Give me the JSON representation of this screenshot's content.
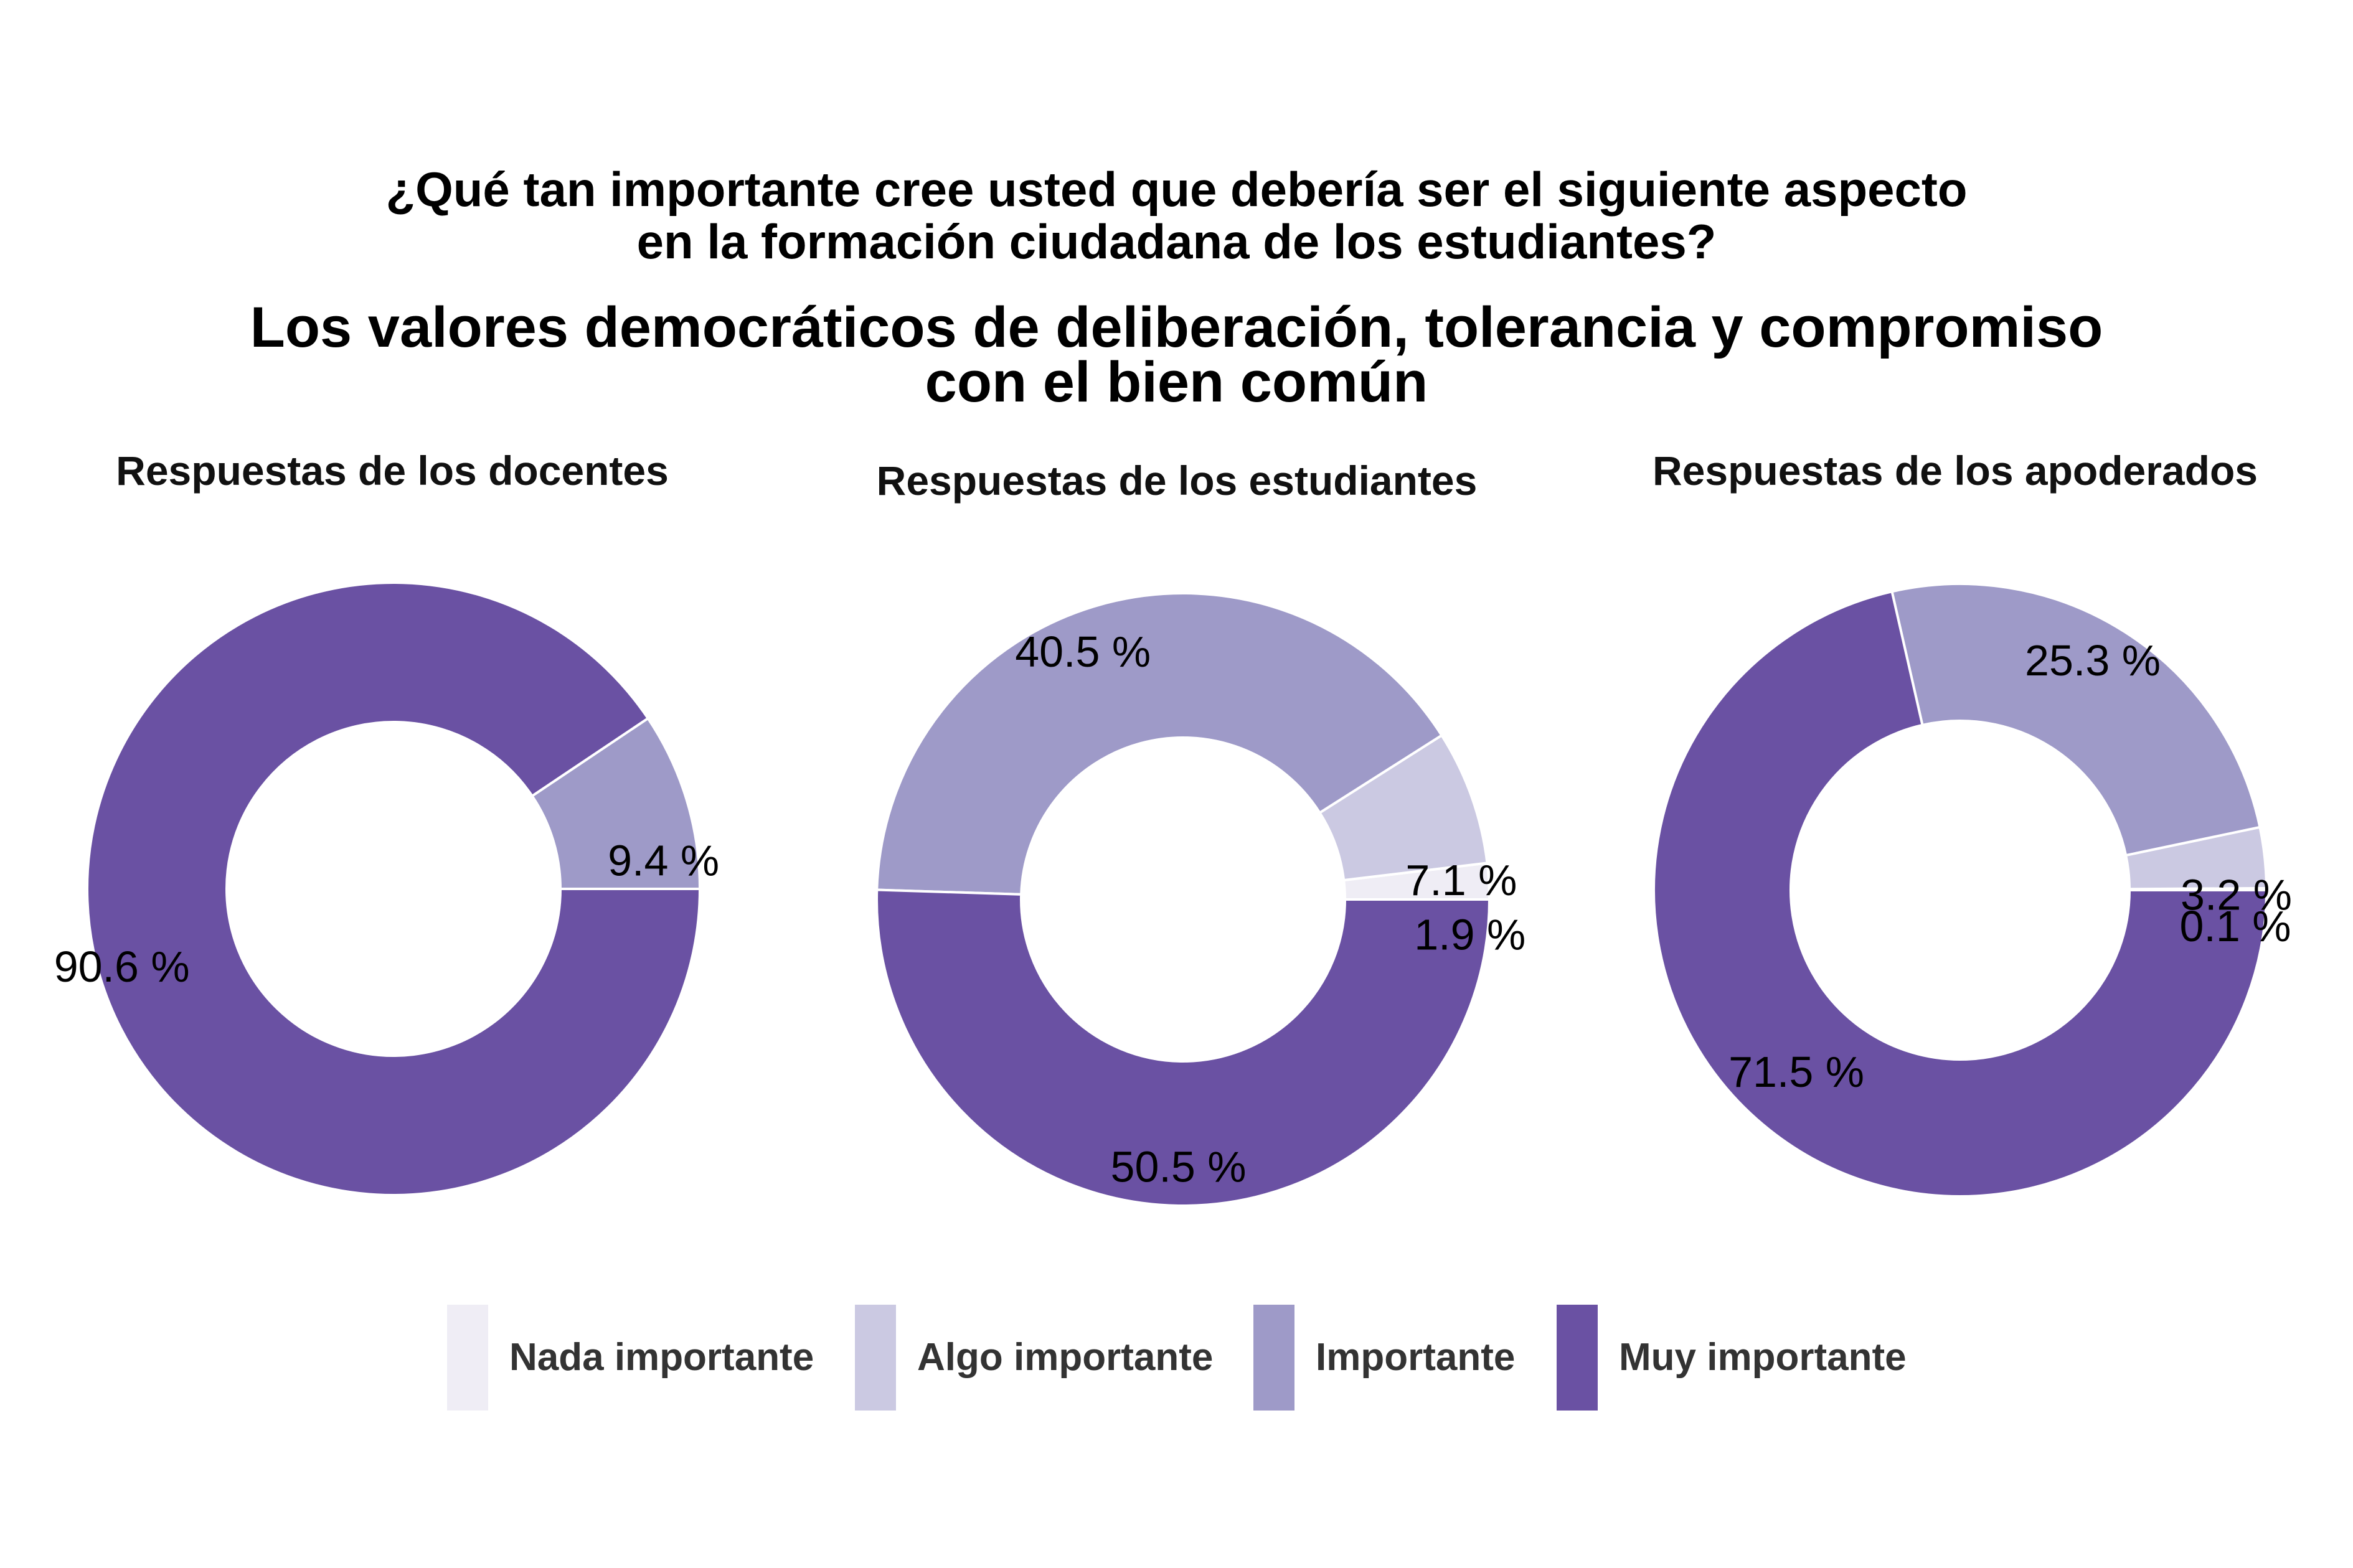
{
  "title": {
    "line1": "¿Qué tan importante cree usted que debería ser el siguiente aspecto",
    "line2": "en la formación ciudadana de los estudiantes?"
  },
  "subtitle": {
    "line1": "Los valores democráticos de deliberación, tolerancia y compromiso",
    "line2": "con el bien común"
  },
  "colors": {
    "Nada importante": "#efedf5",
    "Algo importante": "#cbc9e2",
    "Importante": "#9e9ac8",
    "Muy importante": "#6a51a3"
  },
  "legend": {
    "items": [
      {
        "label": "Nada importante",
        "color": "#efedf5"
      },
      {
        "label": "Algo importante",
        "color": "#cbc9e2"
      },
      {
        "label": "Importante",
        "color": "#9e9ac8"
      },
      {
        "label": "Muy importante",
        "color": "#6a51a3"
      }
    ]
  },
  "chart_data": [
    {
      "type": "pie",
      "title": "Respuestas de los docentes",
      "categories": [
        "Nada importante",
        "Algo importante",
        "Importante",
        "Muy importante"
      ],
      "values": [
        0,
        0,
        9.4,
        90.6
      ],
      "labels": [
        "",
        "",
        "9.4 %",
        "90.6 %"
      ]
    },
    {
      "type": "pie",
      "title": "Respuestas de los estudiantes",
      "categories": [
        "Nada importante",
        "Algo importante",
        "Importante",
        "Muy importante"
      ],
      "values": [
        1.9,
        7.1,
        40.5,
        50.5
      ],
      "labels": [
        "1.9 %",
        "7.1 %",
        "40.5 %",
        "50.5 %"
      ]
    },
    {
      "type": "pie",
      "title": "Respuestas de los apoderados",
      "categories": [
        "Nada importante",
        "Algo importante",
        "Importante",
        "Muy importante"
      ],
      "values": [
        0.1,
        3.2,
        25.3,
        71.5
      ],
      "labels": [
        "0.1 %",
        "3.2 %",
        "25.3 %",
        "71.5 %"
      ]
    }
  ]
}
